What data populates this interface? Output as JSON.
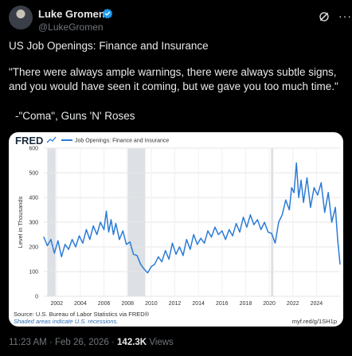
{
  "author": {
    "name": "Luke Gromen",
    "handle": "@LukeGromen"
  },
  "tweet": {
    "line1": "US Job Openings: Finance and Insurance",
    "line2": "\"There were always ample warnings, there were always subtle signs, and you would have seen it coming, but we gave you too much time.\"",
    "line3": "-\"Coma\", Guns 'N' Roses"
  },
  "card": {
    "logo": "FRED",
    "source": "Source: U.S. Bureau of Labor Statistics via FRED®",
    "shaded_note": "Shaded areas indicate U.S. recessions.",
    "link": "myf.red/g/1SH1p"
  },
  "meta": {
    "time": "11:23 AM",
    "sep": "·",
    "date": "Feb 26, 2026",
    "sep2": "·",
    "views_count": "142.3K",
    "views_label": "Views"
  },
  "colors": {
    "line": "#2b7bd8",
    "recession": "#dde0e4",
    "verified": "#1d9bf0"
  },
  "chart_data": {
    "type": "line",
    "title": "",
    "xlabel": "",
    "ylabel": "Level in Thousands",
    "legend": "Job Openings: Finance and Insurance",
    "legend_position": "top-left",
    "ylim": [
      0,
      600
    ],
    "xlim": [
      2000.9,
      2026.0
    ],
    "yticks": [
      0,
      100,
      200,
      300,
      400,
      500,
      600
    ],
    "xticks": [
      "2002",
      "2004",
      "2006",
      "2008",
      "2010",
      "2012",
      "2014",
      "2016",
      "2018",
      "2020",
      "2022",
      "2024"
    ],
    "recessions": [
      [
        2001.2,
        2001.9
      ],
      [
        2007.95,
        2009.5
      ],
      [
        2020.15,
        2020.35
      ]
    ],
    "grid": true,
    "series": [
      {
        "name": "Job Openings: Finance and Insurance",
        "x": [
          2000.9,
          2001.2,
          2001.5,
          2001.8,
          2002.1,
          2002.4,
          2002.7,
          2003.0,
          2003.3,
          2003.6,
          2003.9,
          2004.2,
          2004.5,
          2004.8,
          2005.1,
          2005.4,
          2005.7,
          2006.0,
          2006.2,
          2006.4,
          2006.6,
          2006.8,
          2007.0,
          2007.3,
          2007.6,
          2007.9,
          2008.2,
          2008.5,
          2008.8,
          2009.1,
          2009.4,
          2009.7,
          2010.0,
          2010.3,
          2010.6,
          2010.9,
          2011.2,
          2011.5,
          2011.8,
          2012.1,
          2012.4,
          2012.7,
          2013.0,
          2013.3,
          2013.6,
          2013.9,
          2014.2,
          2014.5,
          2014.8,
          2015.1,
          2015.4,
          2015.7,
          2016.0,
          2016.3,
          2016.6,
          2016.9,
          2017.2,
          2017.5,
          2017.8,
          2018.1,
          2018.4,
          2018.7,
          2019.0,
          2019.3,
          2019.6,
          2019.9,
          2020.2,
          2020.5,
          2020.8,
          2021.1,
          2021.4,
          2021.7,
          2021.9,
          2022.1,
          2022.3,
          2022.5,
          2022.7,
          2022.9,
          2023.2,
          2023.5,
          2023.8,
          2024.1,
          2024.4,
          2024.7,
          2025.0,
          2025.3,
          2025.6,
          2025.8,
          2026.0
        ],
        "values": [
          240,
          205,
          230,
          175,
          225,
          160,
          210,
          190,
          230,
          200,
          245,
          215,
          270,
          230,
          285,
          250,
          300,
          270,
          345,
          260,
          310,
          250,
          295,
          230,
          265,
          210,
          220,
          170,
          165,
          130,
          110,
          95,
          120,
          130,
          160,
          140,
          185,
          150,
          215,
          170,
          200,
          165,
          230,
          190,
          250,
          210,
          235,
          215,
          265,
          240,
          280,
          250,
          265,
          230,
          270,
          245,
          295,
          260,
          320,
          280,
          330,
          290,
          310,
          270,
          300,
          260,
          255,
          215,
          300,
          330,
          390,
          350,
          440,
          420,
          540,
          400,
          470,
          380,
          480,
          360,
          440,
          410,
          460,
          340,
          420,
          300,
          360,
          230,
          130
        ]
      }
    ]
  }
}
